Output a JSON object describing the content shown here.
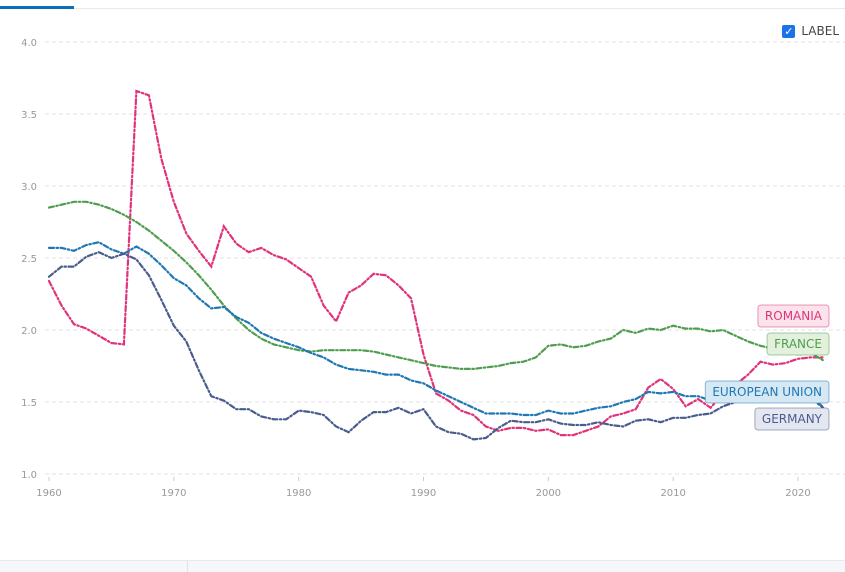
{
  "toggle": {
    "label": "LABEL",
    "checked": true
  },
  "chart_data": {
    "type": "line",
    "xlim": [
      1960,
      2022
    ],
    "ylim": [
      1.0,
      4.0
    ],
    "x_ticks": [
      "1960",
      "1970",
      "1980",
      "1990",
      "2000",
      "2010",
      "2020"
    ],
    "y_ticks": [
      "1.0",
      "1.5",
      "2.0",
      "2.5",
      "3.0",
      "3.5",
      "4.0"
    ],
    "grid": "horizontal dashed",
    "x_start": 1960,
    "series": [
      {
        "name": "ROMANIA",
        "color": "#e0337a",
        "fill": "#fbe3ec",
        "values": [
          2.34,
          2.17,
          2.04,
          2.01,
          1.96,
          1.91,
          1.9,
          3.66,
          3.63,
          3.19,
          2.89,
          2.67,
          2.55,
          2.44,
          2.72,
          2.6,
          2.54,
          2.57,
          2.52,
          2.49,
          2.43,
          2.37,
          2.17,
          2.06,
          2.26,
          2.31,
          2.39,
          2.38,
          2.31,
          2.22,
          1.83,
          1.56,
          1.51,
          1.44,
          1.41,
          1.33,
          1.3,
          1.32,
          1.32,
          1.3,
          1.31,
          1.27,
          1.27,
          1.3,
          1.33,
          1.4,
          1.42,
          1.45,
          1.6,
          1.66,
          1.59,
          1.47,
          1.52,
          1.46,
          1.56,
          1.62,
          1.69,
          1.78,
          1.76,
          1.77,
          1.8,
          1.81,
          1.81
        ]
      },
      {
        "name": "FRANCE",
        "color": "#4f9e4f",
        "fill": "#e2f0dc",
        "values": [
          2.85,
          2.87,
          2.89,
          2.89,
          2.87,
          2.84,
          2.8,
          2.75,
          2.69,
          2.62,
          2.55,
          2.47,
          2.38,
          2.28,
          2.17,
          2.08,
          2.0,
          1.94,
          1.9,
          1.88,
          1.86,
          1.85,
          1.86,
          1.86,
          1.86,
          1.86,
          1.85,
          1.83,
          1.81,
          1.79,
          1.77,
          1.75,
          1.74,
          1.73,
          1.73,
          1.74,
          1.75,
          1.77,
          1.78,
          1.81,
          1.89,
          1.9,
          1.88,
          1.89,
          1.92,
          1.94,
          2.0,
          1.98,
          2.01,
          2.0,
          2.03,
          2.01,
          2.01,
          1.99,
          2.0,
          1.96,
          1.92,
          1.89,
          1.87,
          1.86,
          1.83,
          1.84,
          1.79
        ]
      },
      {
        "name": "EUROPEAN UNION",
        "color": "#1f78b4",
        "fill": "#d7e8f5",
        "values": [
          2.57,
          2.57,
          2.55,
          2.59,
          2.61,
          2.56,
          2.53,
          2.58,
          2.53,
          2.45,
          2.36,
          2.31,
          2.22,
          2.15,
          2.16,
          2.09,
          2.05,
          1.98,
          1.94,
          1.91,
          1.88,
          1.84,
          1.81,
          1.76,
          1.73,
          1.72,
          1.71,
          1.69,
          1.69,
          1.65,
          1.63,
          1.58,
          1.54,
          1.5,
          1.46,
          1.42,
          1.42,
          1.42,
          1.41,
          1.41,
          1.44,
          1.42,
          1.42,
          1.44,
          1.46,
          1.47,
          1.5,
          1.52,
          1.57,
          1.56,
          1.57,
          1.54,
          1.54,
          1.51,
          1.54,
          1.54,
          1.57,
          1.56,
          1.54,
          1.53,
          1.5,
          1.53,
          1.46
        ]
      },
      {
        "name": "GERMANY",
        "color": "#4a5c8e",
        "fill": "#e4e6f0",
        "values": [
          2.37,
          2.44,
          2.44,
          2.51,
          2.54,
          2.5,
          2.53,
          2.49,
          2.38,
          2.21,
          2.03,
          1.92,
          1.72,
          1.54,
          1.51,
          1.45,
          1.45,
          1.4,
          1.38,
          1.38,
          1.44,
          1.43,
          1.41,
          1.33,
          1.29,
          1.37,
          1.43,
          1.43,
          1.46,
          1.42,
          1.45,
          1.33,
          1.29,
          1.28,
          1.24,
          1.25,
          1.32,
          1.37,
          1.36,
          1.36,
          1.38,
          1.35,
          1.34,
          1.34,
          1.36,
          1.34,
          1.33,
          1.37,
          1.38,
          1.36,
          1.39,
          1.39,
          1.41,
          1.42,
          1.47,
          1.5,
          1.6,
          1.57,
          1.57,
          1.54,
          1.53,
          1.58,
          1.46
        ]
      }
    ]
  }
}
